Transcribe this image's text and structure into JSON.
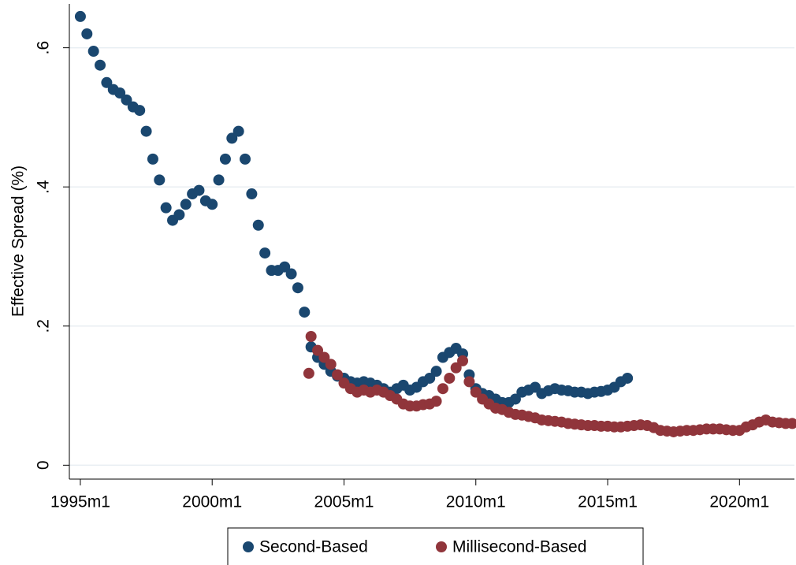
{
  "chart_data": {
    "type": "scatter",
    "y_label": "Effective Spread (%)",
    "xlim": [
      "1994m8",
      "2022m2"
    ],
    "xticks": [
      "1995m1",
      "2000m1",
      "2005m1",
      "2010m1",
      "2015m1",
      "2020m1"
    ],
    "ylim": [
      -0.02,
      0.663
    ],
    "yticks": [
      0,
      {
        "value": 0.2,
        "label": ".2"
      },
      {
        "value": 0.4,
        "label": ".4"
      },
      {
        "value": 0.6,
        "label": ".6"
      }
    ],
    "grid": true,
    "legend": "bottom",
    "series": [
      {
        "name": "Second-Based",
        "color": "#1a476f",
        "x": [
          "1995m1",
          "1995m4",
          "1995m7",
          "1995m10",
          "1996m1",
          "1996m4",
          "1996m7",
          "1996m10",
          "1997m1",
          "1997m4",
          "1997m7",
          "1997m10",
          "1998m1",
          "1998m4",
          "1998m7",
          "1998m10",
          "1999m1",
          "1999m4",
          "1999m7",
          "1999m10",
          "2000m1",
          "2000m4",
          "2000m7",
          "2000m10",
          "2001m1",
          "2001m4",
          "2001m7",
          "2001m10",
          "2002m1",
          "2002m4",
          "2002m7",
          "2002m10",
          "2003m1",
          "2003m4",
          "2003m7",
          "2003m10",
          "2004m1",
          "2004m4",
          "2004m7",
          "2004m10",
          "2005m1",
          "2005m4",
          "2005m7",
          "2005m10",
          "2006m1",
          "2006m4",
          "2006m7",
          "2006m10",
          "2007m1",
          "2007m4",
          "2007m7",
          "2007m10",
          "2008m1",
          "2008m4",
          "2008m7",
          "2008m10",
          "2009m1",
          "2009m4",
          "2009m7",
          "2009m10",
          "2010m1",
          "2010m4",
          "2010m7",
          "2010m10",
          "2011m1",
          "2011m4",
          "2011m7",
          "2011m10",
          "2012m1",
          "2012m4",
          "2012m7",
          "2012m10",
          "2013m1",
          "2013m4",
          "2013m7",
          "2013m10",
          "2014m1",
          "2014m4",
          "2014m7",
          "2014m10",
          "2015m1",
          "2015m4",
          "2015m7",
          "2015m10"
        ],
        "values": [
          0.645,
          0.62,
          0.595,
          0.575,
          0.55,
          0.54,
          0.535,
          0.525,
          0.515,
          0.51,
          0.48,
          0.44,
          0.41,
          0.37,
          0.352,
          0.36,
          0.375,
          0.39,
          0.395,
          0.38,
          0.375,
          0.41,
          0.44,
          0.47,
          0.48,
          0.44,
          0.39,
          0.345,
          0.305,
          0.28,
          0.28,
          0.285,
          0.275,
          0.255,
          0.22,
          0.17,
          0.155,
          0.145,
          0.135,
          0.128,
          0.125,
          0.12,
          0.118,
          0.12,
          0.118,
          0.115,
          0.11,
          0.105,
          0.11,
          0.115,
          0.108,
          0.112,
          0.12,
          0.125,
          0.135,
          0.155,
          0.162,
          0.168,
          0.16,
          0.13,
          0.11,
          0.103,
          0.1,
          0.095,
          0.09,
          0.09,
          0.095,
          0.105,
          0.108,
          0.112,
          0.103,
          0.107,
          0.11,
          0.108,
          0.107,
          0.105,
          0.105,
          0.103,
          0.105,
          0.106,
          0.108,
          0.112,
          0.12,
          0.125
        ]
      },
      {
        "name": "Millisecond-Based",
        "color": "#90353b",
        "x": [
          "2003m9",
          "2003m10",
          "2004m1",
          "2004m4",
          "2004m7",
          "2004m10",
          "2005m1",
          "2005m4",
          "2005m7",
          "2005m10",
          "2006m1",
          "2006m4",
          "2006m7",
          "2006m10",
          "2007m1",
          "2007m4",
          "2007m7",
          "2007m10",
          "2008m1",
          "2008m4",
          "2008m7",
          "2008m10",
          "2009m1",
          "2009m4",
          "2009m7",
          "2009m10",
          "2010m1",
          "2010m4",
          "2010m7",
          "2010m10",
          "2011m1",
          "2011m4",
          "2011m7",
          "2011m10",
          "2012m1",
          "2012m4",
          "2012m7",
          "2012m10",
          "2013m1",
          "2013m4",
          "2013m7",
          "2013m10",
          "2014m1",
          "2014m4",
          "2014m7",
          "2014m10",
          "2015m1",
          "2015m4",
          "2015m7",
          "2015m10",
          "2016m1",
          "2016m4",
          "2016m7",
          "2016m10",
          "2017m1",
          "2017m4",
          "2017m7",
          "2017m10",
          "2018m1",
          "2018m4",
          "2018m7",
          "2018m10",
          "2019m1",
          "2019m4",
          "2019m7",
          "2019m10",
          "2020m1",
          "2020m4",
          "2020m7",
          "2020m10",
          "2021m1",
          "2021m4",
          "2021m7",
          "2021m10",
          "2022m1"
        ],
        "values": [
          0.132,
          0.185,
          0.165,
          0.155,
          0.145,
          0.13,
          0.118,
          0.11,
          0.105,
          0.108,
          0.105,
          0.108,
          0.105,
          0.1,
          0.095,
          0.088,
          0.085,
          0.085,
          0.087,
          0.088,
          0.092,
          0.11,
          0.125,
          0.14,
          0.15,
          0.12,
          0.105,
          0.095,
          0.088,
          0.082,
          0.08,
          0.076,
          0.073,
          0.072,
          0.07,
          0.068,
          0.065,
          0.064,
          0.063,
          0.062,
          0.06,
          0.059,
          0.058,
          0.057,
          0.057,
          0.056,
          0.056,
          0.055,
          0.055,
          0.056,
          0.057,
          0.058,
          0.057,
          0.054,
          0.05,
          0.049,
          0.048,
          0.049,
          0.05,
          0.05,
          0.051,
          0.052,
          0.052,
          0.052,
          0.051,
          0.05,
          0.05,
          0.055,
          0.058,
          0.062,
          0.065,
          0.062,
          0.061,
          0.06,
          0.06
        ]
      }
    ]
  }
}
